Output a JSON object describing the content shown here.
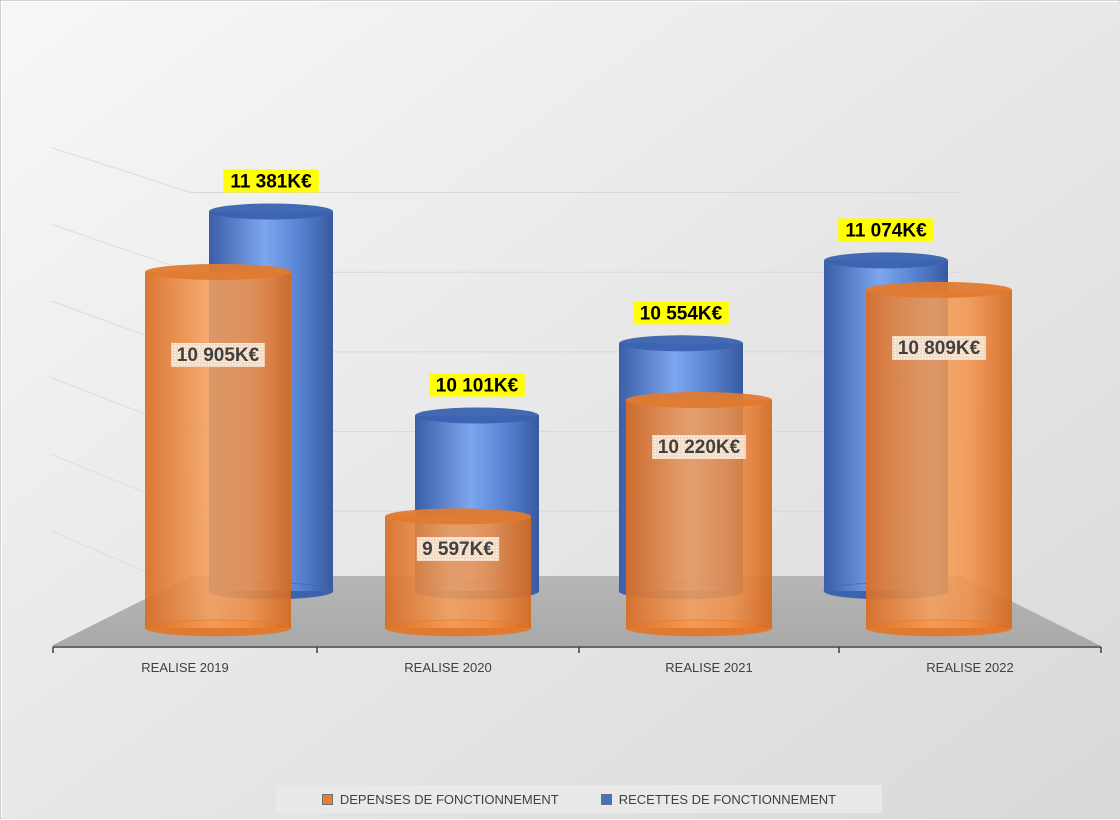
{
  "chart_data": {
    "type": "bar",
    "style": "3d-cylinder",
    "categories": [
      "REALISE 2019",
      "REALISE 2020",
      "REALISE 2021",
      "REALISE 2022"
    ],
    "series": [
      {
        "name": "DEPENSES DE FONCTIONNEMENT",
        "color": "#ED7D31",
        "values": [
          10905,
          9597,
          10220,
          10809
        ],
        "labels": [
          "10 905K€",
          "9 597K€",
          "10 220K€",
          "10 809K€"
        ]
      },
      {
        "name": "RECETTES DE FONCTIONNEMENT",
        "color": "#4472C4",
        "values": [
          11381,
          10101,
          10554,
          11074
        ],
        "labels": [
          "11 381K€",
          "10 101K€",
          "10 554K€",
          "11 074K€"
        ]
      }
    ],
    "ylim": [
      9000,
      12000
    ],
    "grid": true,
    "legend_position": "bottom",
    "highlight_color": "#FFFF00",
    "title": "",
    "xlabel": "",
    "ylabel": ""
  }
}
